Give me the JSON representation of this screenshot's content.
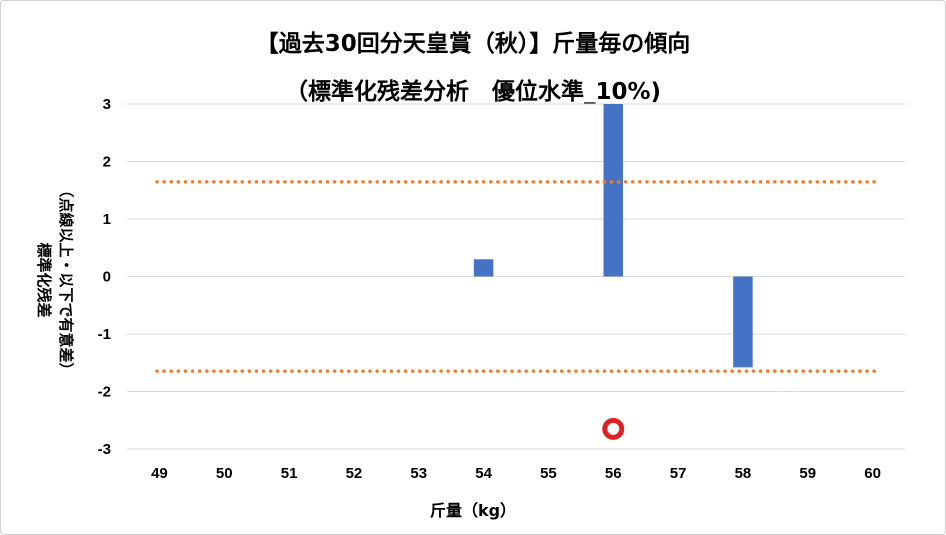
{
  "chart_data": {
    "type": "bar",
    "title": "【過去30回分天皇賞（秋）】斤量毎の傾向",
    "subtitle": "（標準化残差分析　優位水準_10%)",
    "xlabel": "斤量（kg）",
    "ylabel_line1": "標準化残差",
    "ylabel_line2": "（点線以上・以下で有意差）",
    "categories": [
      "49",
      "50",
      "51",
      "52",
      "53",
      "54",
      "55",
      "56",
      "57",
      "58",
      "59",
      "60"
    ],
    "values": [
      null,
      null,
      null,
      null,
      null,
      0.3,
      null,
      3.0,
      null,
      -1.58,
      null,
      null
    ],
    "ylim": [
      -3,
      3
    ],
    "yticks": [
      3,
      2,
      1,
      0,
      -1,
      -2,
      -3
    ],
    "threshold_lines": [
      1.645,
      -1.645
    ],
    "marker": {
      "category": "56",
      "y": -2.65
    },
    "grid": true,
    "colors": {
      "bar": "#4472C4",
      "threshold": "#ED7D31",
      "marker": "#E02020",
      "grid": "#d9d9d9"
    }
  }
}
